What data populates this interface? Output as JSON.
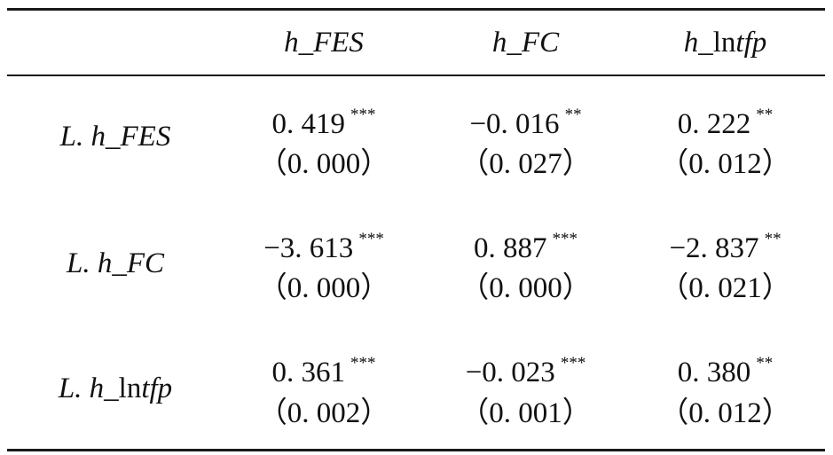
{
  "table": {
    "columns": [
      "h_FES",
      "h_FC",
      "h_lntfp"
    ],
    "column_parts": [
      {
        "pre": "h_FES",
        "roman": "",
        "post": ""
      },
      {
        "pre": "h_FC",
        "roman": "",
        "post": ""
      },
      {
        "pre": "h_",
        "roman": "ln",
        "post": "tfp"
      }
    ],
    "rows": [
      {
        "label_pre": "L. h_FES",
        "label_roman": "",
        "label_post": "",
        "cells": [
          {
            "coef": "0. 419",
            "stars": "***",
            "p": "（0. 000）"
          },
          {
            "coef": "−0. 016",
            "stars": "**",
            "p": "（0. 027）"
          },
          {
            "coef": "0. 222",
            "stars": "**",
            "p": "（0. 012）"
          }
        ]
      },
      {
        "label_pre": "L. h_FC",
        "label_roman": "",
        "label_post": "",
        "cells": [
          {
            "coef": "−3. 613",
            "stars": "***",
            "p": "（0. 000）"
          },
          {
            "coef": "0. 887",
            "stars": "***",
            "p": "（0. 000）"
          },
          {
            "coef": "−2. 837",
            "stars": "**",
            "p": "（0. 021）"
          }
        ]
      },
      {
        "label_pre": "L. h_",
        "label_roman": "ln",
        "label_post": "tfp",
        "cells": [
          {
            "coef": "0. 361",
            "stars": "***",
            "p": "（0. 002）"
          },
          {
            "coef": "−0. 023",
            "stars": "***",
            "p": "（0. 001）"
          },
          {
            "coef": "0. 380",
            "stars": "**",
            "p": "（0. 012）"
          }
        ]
      }
    ]
  }
}
